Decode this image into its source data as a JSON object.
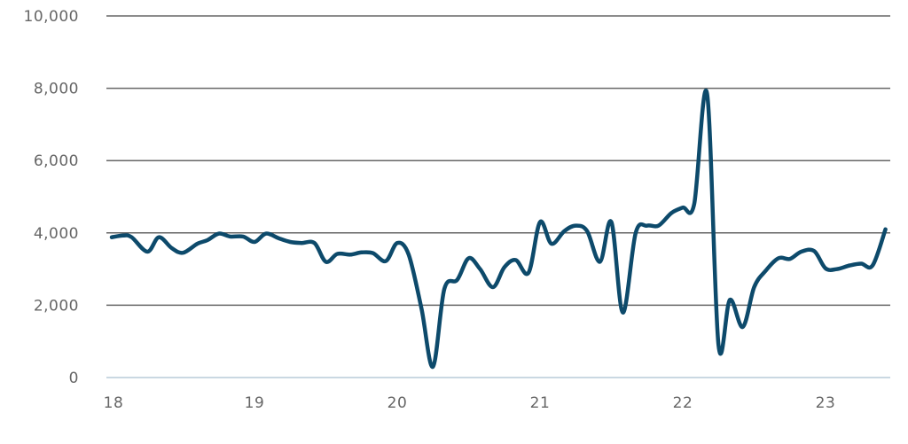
{
  "chart_data": {
    "type": "line",
    "title": "",
    "xlabel": "",
    "ylabel": "",
    "xlim": [
      18.0,
      23.5
    ],
    "ylim": [
      0,
      10000
    ],
    "yticks": [
      0,
      2000,
      4000,
      6000,
      8000,
      10000
    ],
    "ytick_labels": [
      "0",
      "2,000",
      "4,000",
      "6,000",
      "8,000",
      "10,000"
    ],
    "xticks": [
      18,
      19,
      20,
      21,
      22,
      23
    ],
    "xtick_labels": [
      "18",
      "19",
      "20",
      "21",
      "22",
      "23"
    ],
    "grid": true,
    "colors": {
      "line": "#0d4a6b",
      "grid": "#666666",
      "baseline": "#b9cbd8"
    },
    "series": [
      {
        "x": [
          18.0,
          18.08,
          18.14,
          18.25,
          18.33,
          18.42,
          18.5,
          18.6,
          18.67,
          18.75,
          18.83,
          18.92,
          19.0,
          19.08,
          19.17,
          19.25,
          19.33,
          19.42,
          19.5,
          19.58,
          19.67,
          19.75,
          19.83,
          19.92,
          20.0,
          20.08,
          20.17,
          20.25,
          20.33,
          20.42,
          20.5,
          20.58,
          20.67,
          20.75,
          20.83,
          20.92,
          21.0,
          21.08,
          21.17,
          21.25,
          21.33,
          21.42,
          21.5,
          21.58,
          21.67,
          21.75,
          21.83,
          21.92,
          22.0,
          22.08,
          22.17,
          22.25,
          22.33,
          22.42,
          22.5,
          22.58,
          22.67,
          22.75,
          22.83,
          22.92,
          23.0,
          23.08,
          23.17,
          23.25,
          23.33,
          23.42
        ],
        "y": [
          3880,
          3930,
          3880,
          3480,
          3880,
          3580,
          3450,
          3700,
          3800,
          3980,
          3900,
          3900,
          3750,
          3980,
          3850,
          3750,
          3720,
          3720,
          3200,
          3420,
          3400,
          3460,
          3440,
          3220,
          3720,
          3400,
          1900,
          300,
          2450,
          2700,
          3300,
          3000,
          2500,
          3050,
          3250,
          2900,
          4300,
          3700,
          4050,
          4200,
          4050,
          3200,
          4300,
          1800,
          4000,
          4200,
          4200,
          4550,
          4700,
          4800,
          7850,
          900,
          2150,
          1400,
          2500,
          2950,
          3300,
          3280,
          3480,
          3500,
          3020,
          3000,
          3100,
          3150,
          3100,
          4100
        ]
      }
    ]
  }
}
